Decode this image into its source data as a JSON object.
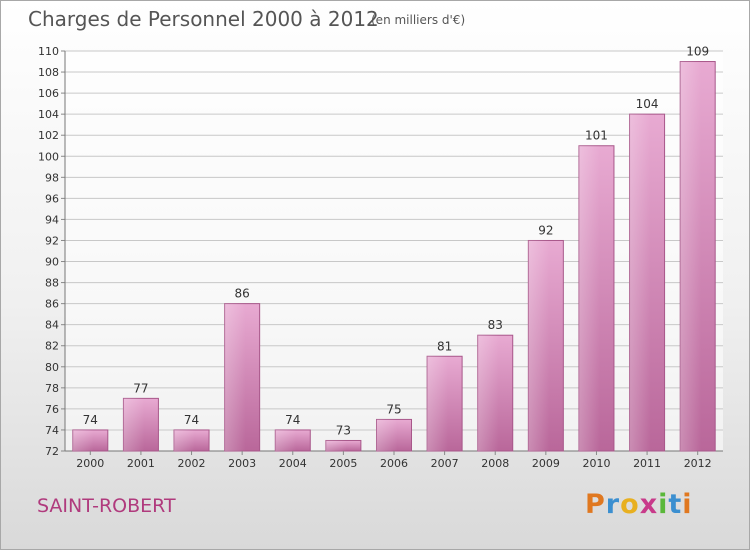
{
  "title": "Charges de Personnel 2000 à 2012",
  "subtitle": "(en milliers d'€)",
  "commune": "SAINT-ROBERT",
  "logo": [
    "P",
    "r",
    "o",
    "x",
    "i",
    "t",
    "i"
  ],
  "logo_colors": [
    "#e07820",
    "#3b8fd0",
    "#e8b020",
    "#c83a8a",
    "#5ab83a",
    "#3b8fd0",
    "#e07820"
  ],
  "bar_color": "#d89ac0",
  "chart_data": {
    "type": "bar",
    "title": "Charges de Personnel 2000 à 2012",
    "categories": [
      "2000",
      "2001",
      "2002",
      "2003",
      "2004",
      "2005",
      "2006",
      "2007",
      "2008",
      "2009",
      "2010",
      "2011",
      "2012"
    ],
    "values": [
      74,
      77,
      74,
      86,
      74,
      73,
      75,
      81,
      83,
      92,
      101,
      104,
      109
    ],
    "ylim": [
      72,
      110
    ],
    "yticks": [
      72,
      74,
      76,
      78,
      80,
      82,
      84,
      86,
      88,
      90,
      92,
      94,
      96,
      98,
      100,
      102,
      104,
      106,
      108,
      110
    ],
    "grid": true
  }
}
